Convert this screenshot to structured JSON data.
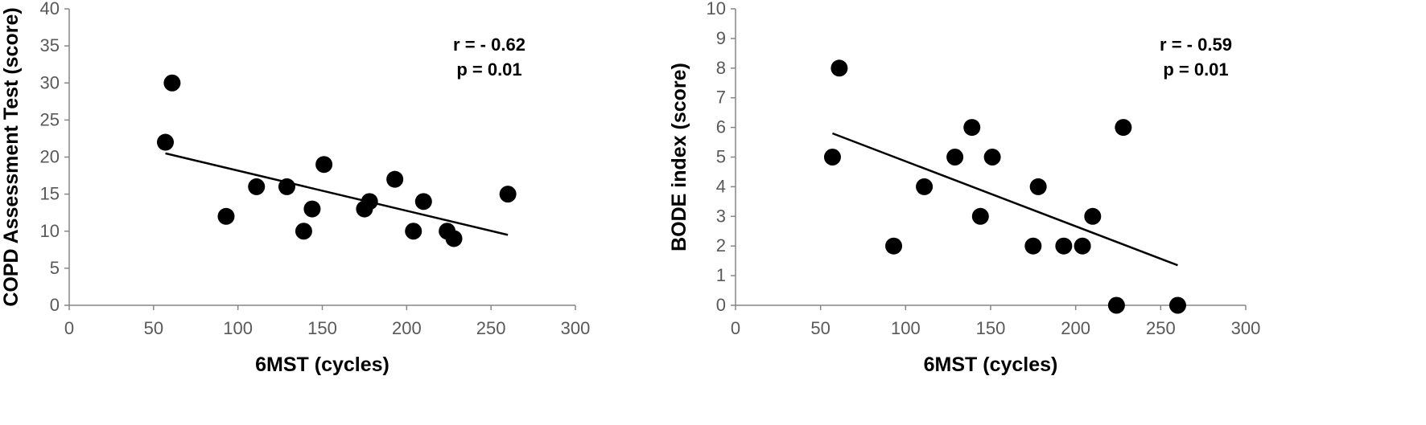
{
  "chart_data": [
    {
      "type": "scatter",
      "xlabel": "6MST (cycles)",
      "ylabel": "COPD Assessment Test (score)",
      "xlim": [
        0,
        300
      ],
      "ylim": [
        0,
        40
      ],
      "xticks": [
        "0",
        "50",
        "100",
        "150",
        "200",
        "250",
        "300"
      ],
      "yticks": [
        "0",
        "5",
        "10",
        "15",
        "20",
        "25",
        "30",
        "35",
        "40"
      ],
      "grid": false,
      "legend": "none",
      "annotation": [
        "r = - 0.62",
        "p = 0.01"
      ],
      "marker_color": "#000000",
      "trendline": {
        "x": [
          57,
          260
        ],
        "y": [
          20.5,
          9.5
        ]
      },
      "points": [
        {
          "x": 57,
          "y": 22
        },
        {
          "x": 61,
          "y": 30
        },
        {
          "x": 93,
          "y": 12
        },
        {
          "x": 111,
          "y": 16
        },
        {
          "x": 129,
          "y": 16
        },
        {
          "x": 139,
          "y": 10
        },
        {
          "x": 144,
          "y": 13
        },
        {
          "x": 151,
          "y": 19
        },
        {
          "x": 175,
          "y": 13
        },
        {
          "x": 178,
          "y": 14
        },
        {
          "x": 193,
          "y": 17
        },
        {
          "x": 204,
          "y": 10
        },
        {
          "x": 210,
          "y": 14
        },
        {
          "x": 224,
          "y": 10
        },
        {
          "x": 228,
          "y": 9
        },
        {
          "x": 260,
          "y": 15
        }
      ]
    },
    {
      "type": "scatter",
      "xlabel": "6MST (cycles)",
      "ylabel": "BODE index (score)",
      "xlim": [
        0,
        300
      ],
      "ylim": [
        0,
        10
      ],
      "xticks": [
        "0",
        "50",
        "100",
        "150",
        "200",
        "250",
        "300"
      ],
      "yticks": [
        "0",
        "1",
        "2",
        "3",
        "4",
        "5",
        "6",
        "7",
        "8",
        "9",
        "10"
      ],
      "grid": false,
      "legend": "none",
      "annotation": [
        "r = - 0.59",
        "p = 0.01"
      ],
      "marker_color": "#000000",
      "trendline": {
        "x": [
          57,
          260
        ],
        "y": [
          5.8,
          1.35
        ]
      },
      "points": [
        {
          "x": 57,
          "y": 5
        },
        {
          "x": 61,
          "y": 8
        },
        {
          "x": 93,
          "y": 2
        },
        {
          "x": 111,
          "y": 4
        },
        {
          "x": 129,
          "y": 5
        },
        {
          "x": 139,
          "y": 6
        },
        {
          "x": 144,
          "y": 3
        },
        {
          "x": 151,
          "y": 5
        },
        {
          "x": 175,
          "y": 2
        },
        {
          "x": 178,
          "y": 4
        },
        {
          "x": 193,
          "y": 2
        },
        {
          "x": 204,
          "y": 2
        },
        {
          "x": 210,
          "y": 3
        },
        {
          "x": 224,
          "y": 0
        },
        {
          "x": 228,
          "y": 6
        },
        {
          "x": 260,
          "y": 0
        }
      ]
    }
  ]
}
